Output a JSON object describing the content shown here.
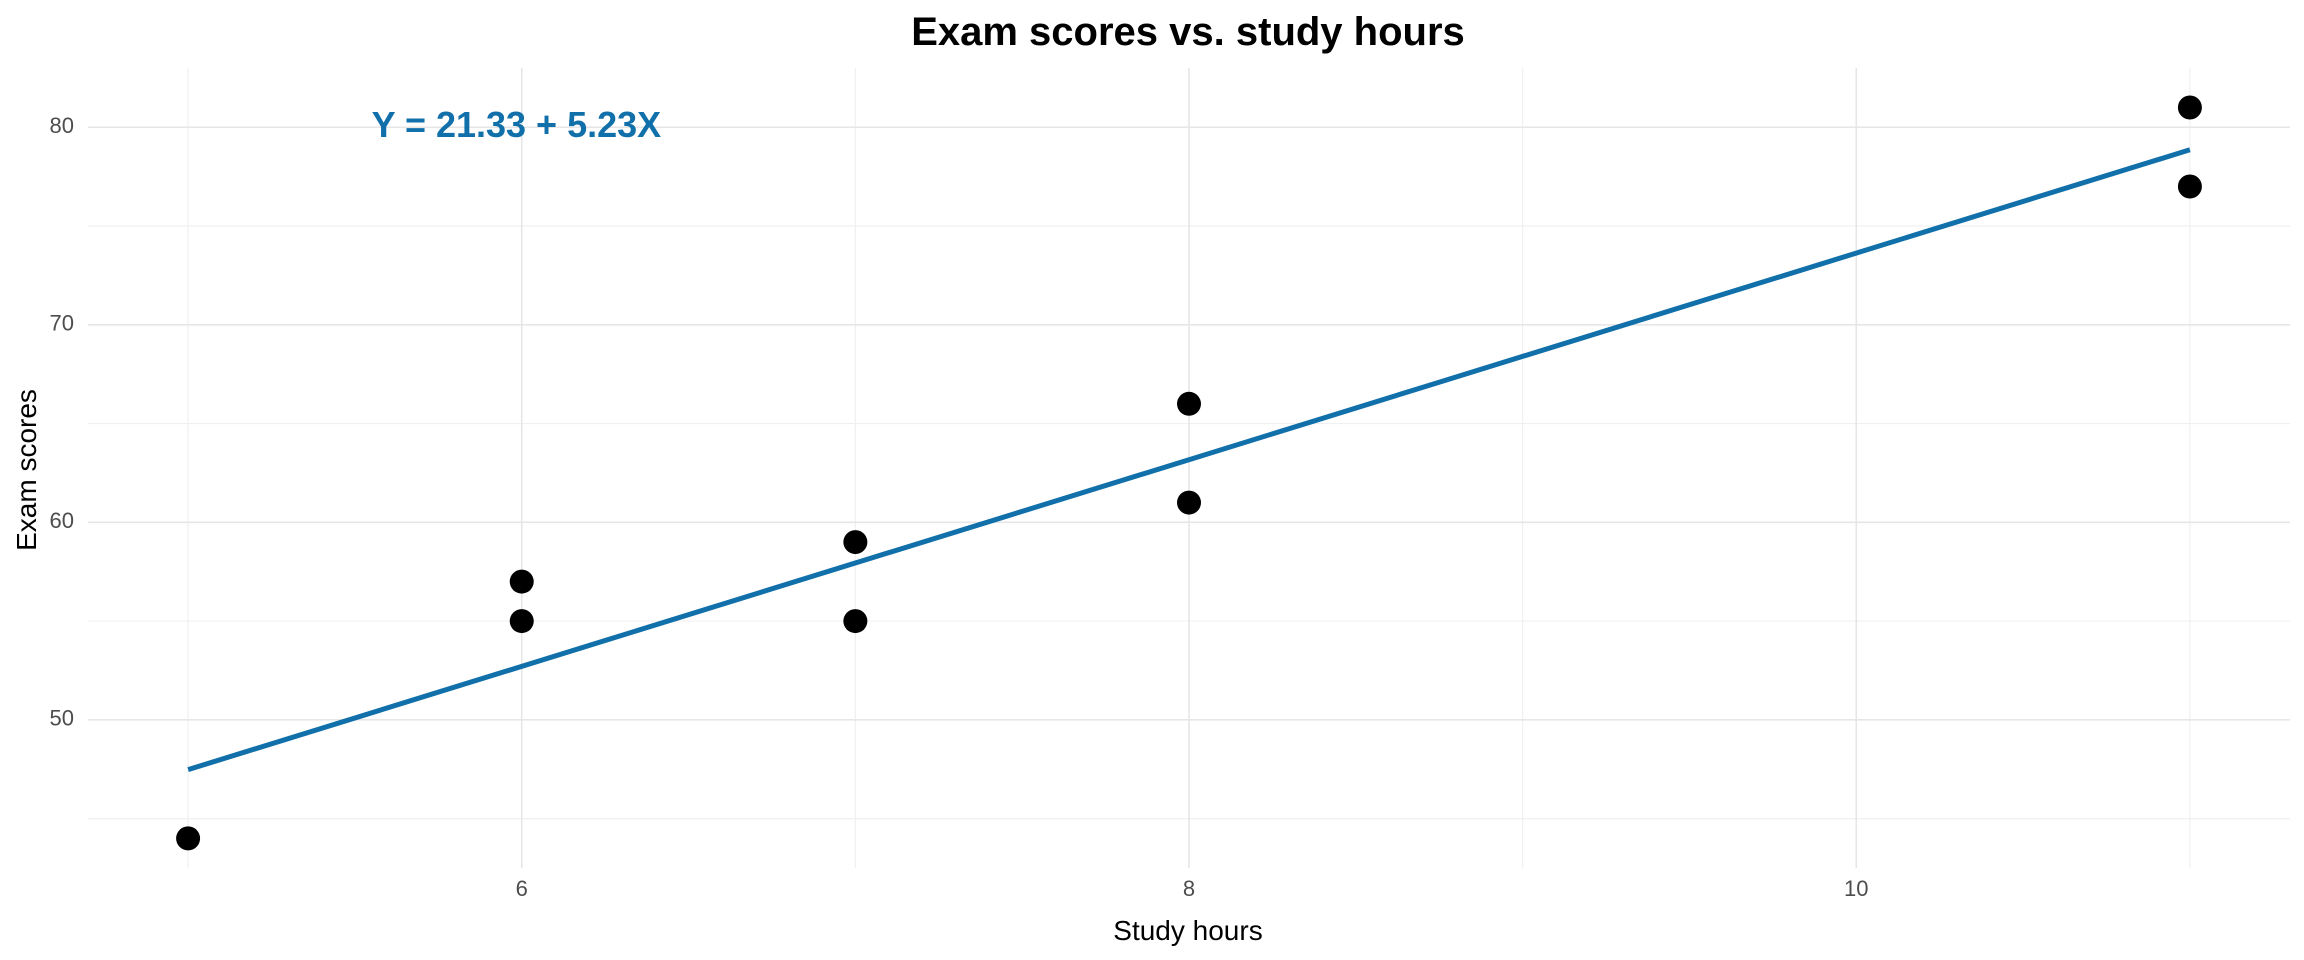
{
  "chart_data": {
    "type": "scatter",
    "title": "Exam scores vs. study hours",
    "xlabel": "Study hours",
    "ylabel": "Exam scores",
    "xlim": [
      4.7,
      11.3
    ],
    "ylim": [
      42.5,
      83.0
    ],
    "x_ticks": [
      6,
      8,
      10
    ],
    "x_tick_labels": [
      "6",
      "8",
      "10"
    ],
    "x_minor_ticks": [
      5,
      7,
      9,
      11
    ],
    "y_ticks": [
      50,
      60,
      70,
      80
    ],
    "y_tick_labels": [
      "50",
      "60",
      "70",
      "80"
    ],
    "y_minor_ticks": [
      45,
      55,
      65,
      75
    ],
    "grid": true,
    "legend": "none",
    "points": [
      {
        "x": 5,
        "y": 44
      },
      {
        "x": 6,
        "y": 57
      },
      {
        "x": 6,
        "y": 55
      },
      {
        "x": 7,
        "y": 59
      },
      {
        "x": 7,
        "y": 55
      },
      {
        "x": 8,
        "y": 66
      },
      {
        "x": 8,
        "y": 61
      },
      {
        "x": 11,
        "y": 81
      },
      {
        "x": 11,
        "y": 77
      }
    ],
    "point_color": "#000000",
    "fit_line": {
      "intercept": 21.33,
      "slope": 5.23,
      "x_range": [
        5,
        11
      ],
      "color": "#1170AA"
    },
    "annotation": {
      "text": "Y = 21.33 + 5.23X",
      "x": 5.55,
      "y": 80,
      "color": "#1170AA"
    }
  }
}
